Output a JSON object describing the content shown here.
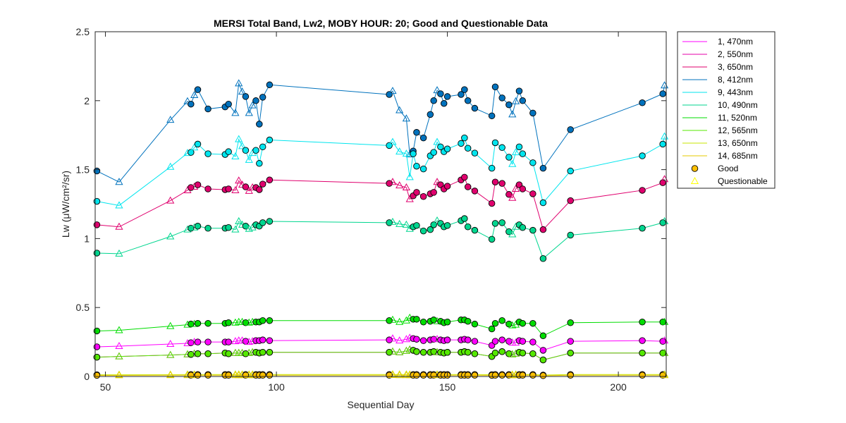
{
  "chart_data": {
    "type": "line",
    "title": "MERSI Total Band,  Lw2, MOBY HOUR: 20;  Good and Questionable Data",
    "xlabel": "Sequential Day",
    "ylabel": "Lw (μW/cm²/sr)",
    "xlim": [
      47,
      214
    ],
    "ylim": [
      0,
      2.5
    ],
    "xticks": [
      50,
      100,
      150,
      200
    ],
    "xtick_labels": [
      "50",
      "100",
      "150",
      "200"
    ],
    "yticks": [
      0,
      0.5,
      1,
      1.5,
      2,
      2.5
    ],
    "ytick_labels": [
      "0",
      "0.5",
      "1",
      "1.5",
      "2",
      "2.5"
    ],
    "grid": false,
    "legend_position": "outside-top-right",
    "legend_markers": [
      {
        "label": "Good",
        "marker": "circle",
        "edge": "#000000",
        "fill": "#FFC000"
      },
      {
        "label": "Questionable",
        "marker": "triangle",
        "edge": "#FFFF00",
        "fill": "none"
      }
    ],
    "x": [
      47.5,
      54,
      69,
      74,
      75,
      76,
      77,
      80,
      85,
      86,
      88,
      89,
      90,
      91,
      92,
      93,
      94,
      95,
      96,
      98,
      133,
      134,
      136,
      138,
      139,
      140,
      141,
      143,
      145,
      146,
      147,
      148,
      149,
      150,
      154,
      155,
      156,
      158,
      163,
      164,
      166,
      168,
      169,
      170,
      171,
      172,
      175,
      178,
      186,
      207,
      213,
      213.5
    ],
    "qmask": [
      0,
      1,
      1,
      1,
      0,
      1,
      0,
      0,
      0,
      0,
      1,
      1,
      1,
      0,
      1,
      1,
      0,
      0,
      0,
      0,
      0,
      1,
      1,
      1,
      1,
      0,
      0,
      0,
      0,
      0,
      1,
      0,
      0,
      0,
      0,
      0,
      0,
      0,
      0,
      0,
      0,
      0,
      1,
      1,
      0,
      0,
      0,
      0,
      0,
      0,
      0,
      1
    ],
    "series": [
      {
        "name": "1, 470nm",
        "color": "#FF00FF",
        "values": [
          0.215,
          0.22,
          0.235,
          0.24,
          0.245,
          0.25,
          0.25,
          0.25,
          0.25,
          0.25,
          0.255,
          0.26,
          0.26,
          0.255,
          0.25,
          0.255,
          0.26,
          0.26,
          0.265,
          0.26,
          0.265,
          0.275,
          0.26,
          0.27,
          0.28,
          0.275,
          0.27,
          0.26,
          0.265,
          0.27,
          0.27,
          0.265,
          0.26,
          0.265,
          0.265,
          0.27,
          0.265,
          0.255,
          0.225,
          0.255,
          0.265,
          0.255,
          0.245,
          0.245,
          0.26,
          0.255,
          0.25,
          0.19,
          0.255,
          0.26,
          0.255,
          0.26
        ]
      },
      {
        "name": "2, 550nm",
        "color": "#E600A8",
        "values": [
          0.14,
          0.145,
          0.155,
          0.16,
          0.16,
          0.165,
          0.165,
          0.165,
          0.17,
          0.165,
          0.17,
          0.17,
          0.17,
          0.165,
          0.17,
          0.175,
          0.175,
          0.17,
          0.175,
          0.175,
          0.175,
          0.18,
          0.175,
          0.185,
          0.195,
          0.19,
          0.18,
          0.175,
          0.175,
          0.18,
          0.175,
          0.175,
          0.17,
          0.175,
          0.175,
          0.18,
          0.175,
          0.165,
          0.145,
          0.17,
          0.18,
          0.165,
          0.16,
          0.165,
          0.175,
          0.17,
          0.165,
          0.12,
          0.17,
          0.17,
          0.17,
          0.17
        ]
      },
      {
        "name": "3, 650nm",
        "color": "#E0006E",
        "values": [
          1.1,
          1.085,
          1.275,
          1.35,
          1.37,
          1.375,
          1.39,
          1.36,
          1.355,
          1.36,
          1.35,
          1.42,
          1.39,
          1.375,
          1.345,
          1.37,
          1.37,
          1.355,
          1.395,
          1.425,
          1.4,
          1.41,
          1.385,
          1.37,
          1.285,
          1.31,
          1.335,
          1.305,
          1.325,
          1.335,
          1.41,
          1.39,
          1.36,
          1.38,
          1.425,
          1.445,
          1.375,
          1.345,
          1.255,
          1.41,
          1.4,
          1.32,
          1.295,
          1.36,
          1.39,
          1.36,
          1.325,
          1.065,
          1.275,
          1.35,
          1.405,
          1.43
        ]
      },
      {
        "name": "8, 412nm",
        "color": "#0072BD",
        "values": [
          1.49,
          1.41,
          1.86,
          1.995,
          1.975,
          2.04,
          2.08,
          1.94,
          1.955,
          1.975,
          1.91,
          2.125,
          2.065,
          2.03,
          1.91,
          1.965,
          2.0,
          1.83,
          2.025,
          2.115,
          2.045,
          2.07,
          1.93,
          1.87,
          1.61,
          1.635,
          1.77,
          1.73,
          1.9,
          2.0,
          2.075,
          2.05,
          1.98,
          2.03,
          2.045,
          2.08,
          2.0,
          1.945,
          1.89,
          2.1,
          2.02,
          1.97,
          1.9,
          1.995,
          2.07,
          2.0,
          1.91,
          1.51,
          1.79,
          1.985,
          2.05,
          2.11
        ]
      },
      {
        "name": "9, 443nm",
        "color": "#00E5EE",
        "values": [
          1.27,
          1.24,
          1.52,
          1.62,
          1.625,
          1.66,
          1.685,
          1.615,
          1.61,
          1.63,
          1.595,
          1.72,
          1.67,
          1.64,
          1.57,
          1.62,
          1.64,
          1.545,
          1.665,
          1.715,
          1.675,
          1.7,
          1.63,
          1.615,
          1.445,
          1.615,
          1.525,
          1.505,
          1.6,
          1.625,
          1.7,
          1.665,
          1.63,
          1.65,
          1.69,
          1.73,
          1.655,
          1.62,
          1.51,
          1.695,
          1.66,
          1.59,
          1.54,
          1.625,
          1.665,
          1.615,
          1.55,
          1.26,
          1.49,
          1.6,
          1.685,
          1.74
        ]
      },
      {
        "name": "10, 490nm",
        "color": "#00D68F",
        "values": [
          0.895,
          0.89,
          1.015,
          1.065,
          1.075,
          1.08,
          1.09,
          1.075,
          1.075,
          1.08,
          1.065,
          1.125,
          1.1,
          1.09,
          1.07,
          1.08,
          1.1,
          1.09,
          1.115,
          1.125,
          1.115,
          1.12,
          1.105,
          1.1,
          1.07,
          1.085,
          1.095,
          1.055,
          1.065,
          1.1,
          1.13,
          1.11,
          1.085,
          1.095,
          1.13,
          1.145,
          1.085,
          1.06,
          0.995,
          1.11,
          1.115,
          1.05,
          1.03,
          1.085,
          1.1,
          1.08,
          1.06,
          0.855,
          1.025,
          1.075,
          1.115,
          1.125
        ]
      },
      {
        "name": "11, 520nm",
        "color": "#00DD00",
        "values": [
          0.33,
          0.335,
          0.365,
          0.375,
          0.38,
          0.38,
          0.385,
          0.385,
          0.385,
          0.39,
          0.39,
          0.395,
          0.395,
          0.39,
          0.39,
          0.395,
          0.395,
          0.395,
          0.405,
          0.405,
          0.405,
          0.41,
          0.395,
          0.405,
          0.425,
          0.415,
          0.415,
          0.395,
          0.4,
          0.41,
          0.4,
          0.4,
          0.39,
          0.395,
          0.41,
          0.41,
          0.4,
          0.38,
          0.345,
          0.385,
          0.405,
          0.38,
          0.37,
          0.375,
          0.395,
          0.385,
          0.385,
          0.295,
          0.39,
          0.395,
          0.395,
          0.395
        ]
      },
      {
        "name": "12, 565nm",
        "color": "#55E800",
        "values": [
          0.14,
          0.145,
          0.155,
          0.16,
          0.16,
          0.165,
          0.165,
          0.165,
          0.17,
          0.165,
          0.17,
          0.17,
          0.17,
          0.165,
          0.17,
          0.175,
          0.175,
          0.17,
          0.175,
          0.175,
          0.175,
          0.18,
          0.175,
          0.185,
          0.195,
          0.19,
          0.18,
          0.175,
          0.175,
          0.18,
          0.175,
          0.175,
          0.17,
          0.175,
          0.175,
          0.18,
          0.175,
          0.165,
          0.145,
          0.17,
          0.18,
          0.165,
          0.16,
          0.165,
          0.175,
          0.17,
          0.165,
          0.12,
          0.17,
          0.17,
          0.17,
          0.17
        ]
      },
      {
        "name": "13, 650nm",
        "color": "#C8E600",
        "values": [
          0.012,
          0.012,
          0.013,
          0.014,
          0.014,
          0.014,
          0.014,
          0.014,
          0.014,
          0.014,
          0.014,
          0.014,
          0.014,
          0.014,
          0.014,
          0.014,
          0.014,
          0.014,
          0.014,
          0.014,
          0.014,
          0.015,
          0.014,
          0.014,
          0.014,
          0.014,
          0.014,
          0.014,
          0.014,
          0.014,
          0.014,
          0.014,
          0.014,
          0.014,
          0.014,
          0.014,
          0.014,
          0.014,
          0.013,
          0.014,
          0.014,
          0.014,
          0.013,
          0.014,
          0.014,
          0.014,
          0.014,
          0.01,
          0.014,
          0.014,
          0.014,
          0.014
        ]
      },
      {
        "name": "14, 685nm",
        "color": "#E6C800",
        "values": [
          0.008,
          0.008,
          0.009,
          0.009,
          0.009,
          0.009,
          0.009,
          0.009,
          0.009,
          0.009,
          0.009,
          0.009,
          0.009,
          0.009,
          0.009,
          0.009,
          0.009,
          0.009,
          0.009,
          0.009,
          0.009,
          0.01,
          0.009,
          0.009,
          0.009,
          0.009,
          0.009,
          0.009,
          0.009,
          0.009,
          0.009,
          0.009,
          0.009,
          0.009,
          0.009,
          0.009,
          0.009,
          0.009,
          0.008,
          0.009,
          0.009,
          0.009,
          0.008,
          0.009,
          0.009,
          0.009,
          0.009,
          0.006,
          0.009,
          0.009,
          0.009,
          0.009
        ]
      }
    ]
  }
}
